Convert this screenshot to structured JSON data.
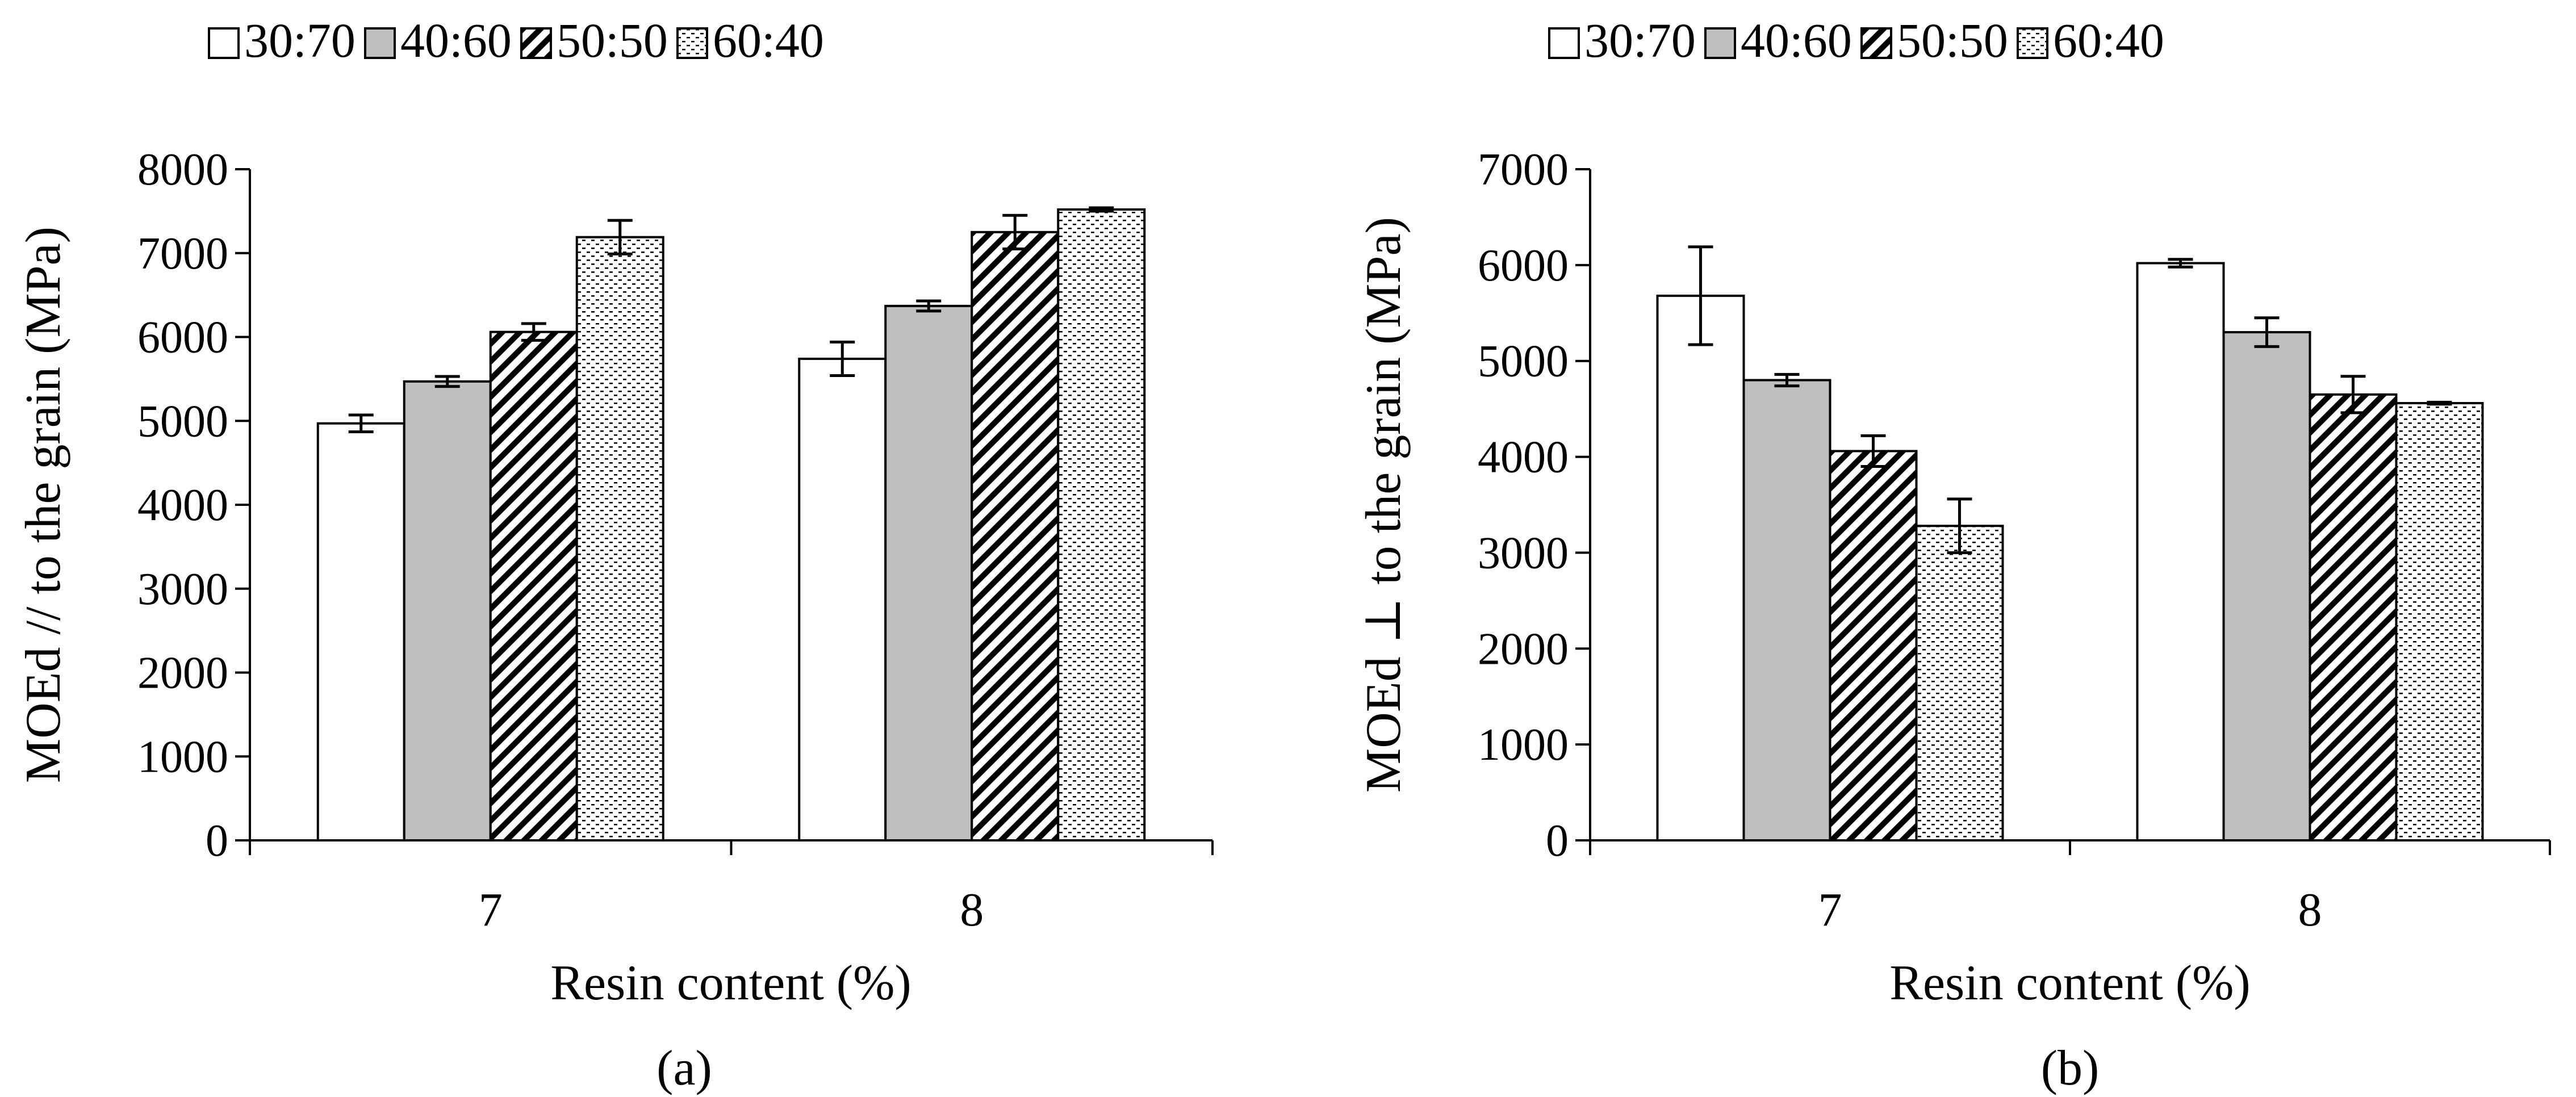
{
  "chart_data": [
    {
      "type": "bar",
      "panel_label": "(a)",
      "xlabel": "Resin content (%)",
      "ylabel": "MOEd // to the grain (MPa)",
      "categories": [
        "7",
        "8"
      ],
      "ylim": [
        0,
        8000
      ],
      "yticks": [
        0,
        1000,
        2000,
        3000,
        4000,
        5000,
        6000,
        7000,
        8000
      ],
      "grid": false,
      "legend_position": "top",
      "series": [
        {
          "name": "30:70",
          "fill": "white",
          "values": [
            4970,
            5740
          ],
          "errors": [
            100,
            200
          ]
        },
        {
          "name": "40:60",
          "fill": "gray",
          "values": [
            5470,
            6370
          ],
          "errors": [
            60,
            60
          ]
        },
        {
          "name": "50:50",
          "fill": "diagonal-hatch",
          "values": [
            6060,
            7250
          ],
          "errors": [
            100,
            200
          ]
        },
        {
          "name": "60:40",
          "fill": "dotted",
          "values": [
            7190,
            7520
          ],
          "errors": [
            200,
            20
          ]
        }
      ]
    },
    {
      "type": "bar",
      "panel_label": "(b)",
      "xlabel": "Resin content (%)",
      "ylabel": "MOEd ⊥ to the grain (MPa)",
      "categories": [
        "7",
        "8"
      ],
      "ylim": [
        0,
        7000
      ],
      "yticks": [
        0,
        1000,
        2000,
        3000,
        4000,
        5000,
        6000,
        7000
      ],
      "grid": false,
      "legend_position": "top",
      "series": [
        {
          "name": "30:70",
          "fill": "white",
          "values": [
            5680,
            6020
          ],
          "errors": [
            510,
            40
          ]
        },
        {
          "name": "40:60",
          "fill": "gray",
          "values": [
            4800,
            5300
          ],
          "errors": [
            60,
            150
          ]
        },
        {
          "name": "50:50",
          "fill": "diagonal-hatch",
          "values": [
            4060,
            4650
          ],
          "errors": [
            160,
            190
          ]
        },
        {
          "name": "60:40",
          "fill": "dotted",
          "values": [
            3280,
            4560
          ],
          "errors": [
            280,
            10
          ]
        }
      ]
    }
  ]
}
